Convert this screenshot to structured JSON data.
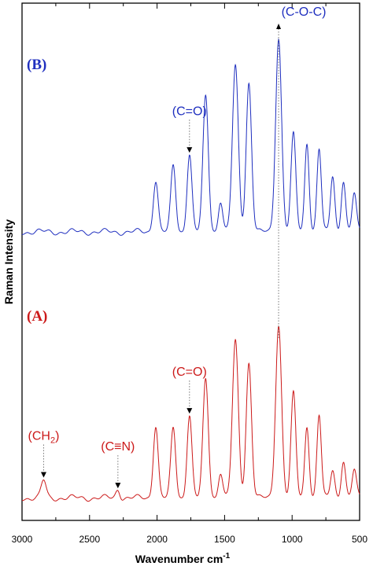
{
  "chart_data": {
    "type": "line",
    "title": "",
    "xlabel": "Wavenumber cm",
    "xlabel_sup": "-1",
    "ylabel": "Raman Intensity",
    "xlim": [
      3000,
      500
    ],
    "x_reversed": true,
    "xticks": [
      "3000",
      "2500",
      "2000",
      "1500",
      "1000",
      "500"
    ],
    "xticks_minor_step": 250,
    "y_ticks_shown": false,
    "grid": false,
    "legend": "none",
    "spectra": [
      {
        "panel_label": "(B)",
        "color": "#1f2fbf",
        "baseline": 0.05,
        "peaks": [
          {
            "x": 2010,
            "h": 0.3,
            "w": 18
          },
          {
            "x": 1880,
            "h": 0.38,
            "w": 18
          },
          {
            "x": 1760,
            "h": 0.45,
            "w": 18
          },
          {
            "x": 1640,
            "h": 0.78,
            "w": 20
          },
          {
            "x": 1530,
            "h": 0.18,
            "w": 16
          },
          {
            "x": 1420,
            "h": 0.95,
            "w": 22
          },
          {
            "x": 1320,
            "h": 0.86,
            "w": 20
          },
          {
            "x": 1100,
            "h": 1.12,
            "w": 22
          },
          {
            "x": 990,
            "h": 0.56,
            "w": 18
          },
          {
            "x": 890,
            "h": 0.52,
            "w": 16
          },
          {
            "x": 800,
            "h": 0.48,
            "w": 16
          },
          {
            "x": 700,
            "h": 0.32,
            "w": 16
          },
          {
            "x": 620,
            "h": 0.3,
            "w": 16
          },
          {
            "x": 540,
            "h": 0.22,
            "w": 16
          }
        ],
        "annotations": [
          {
            "label": "(C=O)",
            "x": 1760,
            "kind": "dotted-arrow"
          },
          {
            "label": "(C-O-C)",
            "x": 1100,
            "kind": "dotted-arrow-up"
          }
        ]
      },
      {
        "panel_label": "(A)",
        "color": "#cc1a1a",
        "baseline": 0.03,
        "peaks": [
          {
            "x": 2840,
            "h": 0.1,
            "w": 18
          },
          {
            "x": 2290,
            "h": 0.05,
            "w": 15
          },
          {
            "x": 2010,
            "h": 0.42,
            "w": 18
          },
          {
            "x": 1880,
            "h": 0.4,
            "w": 18
          },
          {
            "x": 1760,
            "h": 0.48,
            "w": 18
          },
          {
            "x": 1640,
            "h": 0.68,
            "w": 20
          },
          {
            "x": 1530,
            "h": 0.15,
            "w": 16
          },
          {
            "x": 1420,
            "h": 0.9,
            "w": 22
          },
          {
            "x": 1320,
            "h": 0.78,
            "w": 20
          },
          {
            "x": 1100,
            "h": 1.0,
            "w": 22
          },
          {
            "x": 990,
            "h": 0.6,
            "w": 18
          },
          {
            "x": 890,
            "h": 0.42,
            "w": 16
          },
          {
            "x": 800,
            "h": 0.48,
            "w": 16
          },
          {
            "x": 700,
            "h": 0.16,
            "w": 16
          },
          {
            "x": 620,
            "h": 0.22,
            "w": 16
          },
          {
            "x": 540,
            "h": 0.16,
            "w": 16
          }
        ],
        "annotations": [
          {
            "label": "(CH2)",
            "label_base": "(CH",
            "label_sub": "2",
            "label_end": ")",
            "x": 2840,
            "kind": "dotted-arrow"
          },
          {
            "label": "(C≡N)",
            "x": 2290,
            "kind": "dotted-arrow"
          },
          {
            "label": "(C=O)",
            "x": 1760,
            "kind": "dotted-arrow"
          }
        ]
      }
    ]
  }
}
